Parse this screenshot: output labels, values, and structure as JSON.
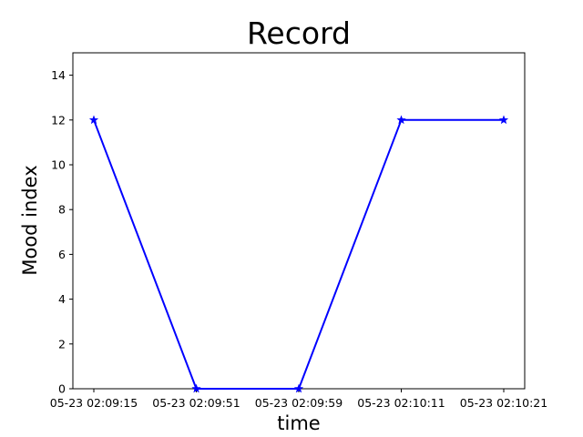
{
  "chart_data": {
    "type": "line",
    "title": "Record",
    "xlabel": "time",
    "ylabel": "Mood index",
    "ylim": [
      0,
      15
    ],
    "x": [
      "05-23 02:09:15",
      "05-23 02:09:51",
      "05-23 02:09:59",
      "05-23 02:10:11",
      "05-23 02:10:21"
    ],
    "series": [
      {
        "values": [
          12,
          0,
          0,
          12,
          12
        ],
        "color": "#0000ff",
        "marker": "star"
      }
    ],
    "yticks": [
      0,
      2,
      4,
      6,
      8,
      10,
      12,
      14
    ],
    "grid": false,
    "legend": "none"
  }
}
